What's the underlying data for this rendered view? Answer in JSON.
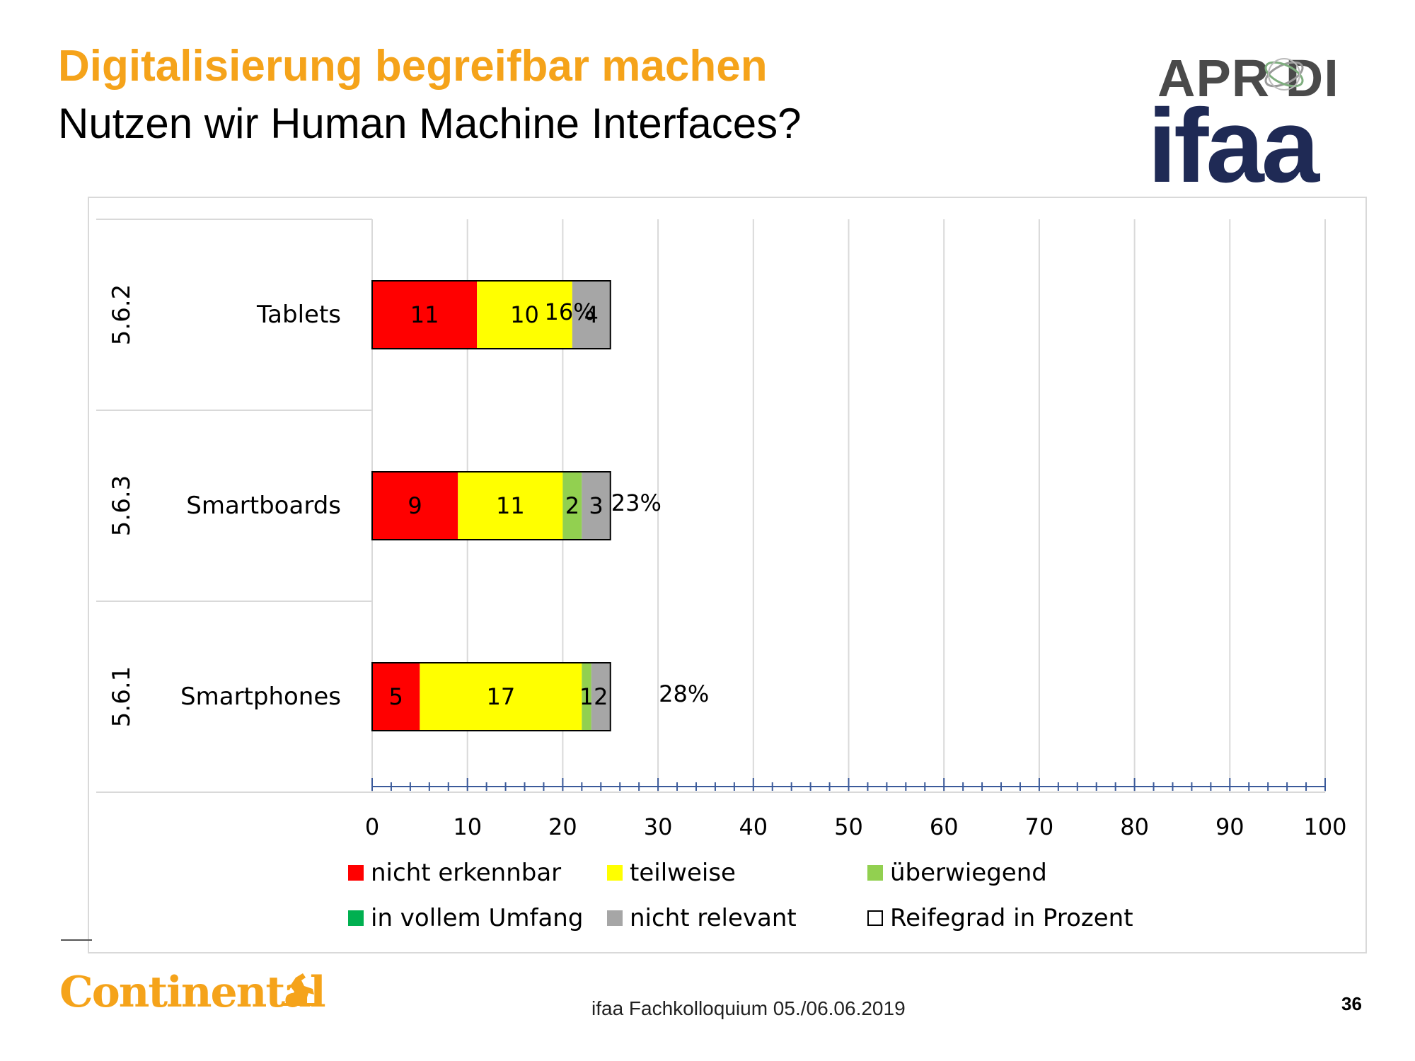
{
  "header": {
    "title": "Digitalisierung begreifbar machen",
    "subtitle": "Nutzen wir Human Machine Interfaces?"
  },
  "logos": {
    "aprodi": "APR  DI",
    "ifaa": "ifaa",
    "continental": "Continental",
    "continental_icon": "horse-icon"
  },
  "footer": {
    "text": "ifaa Fachkolloquium 05./06.06.2019",
    "page_number": "36"
  },
  "colors": {
    "title": "#F5A31A",
    "nicht_erkennbar": "#FF0000",
    "teilweise": "#FFFF00",
    "ueberwiegend": "#92D050",
    "in_vollem_umfang": "#00B050",
    "nicht_relevant": "#A6A6A6",
    "reifegrad": "#FFFFFF",
    "gridline": "#d9d9d9"
  },
  "chart_data": {
    "type": "bar",
    "orientation": "horizontal",
    "stacked": true,
    "categories": [
      {
        "code": "5.6.2",
        "label": "Tablets"
      },
      {
        "code": "5.6.3",
        "label": "Smartboards"
      },
      {
        "code": "5.6.1",
        "label": "Smartphones"
      }
    ],
    "series": [
      {
        "name": "nicht erkennbar",
        "values": [
          11,
          9,
          5
        ],
        "labels": [
          "11",
          "9",
          "5"
        ]
      },
      {
        "name": "teilweise",
        "values": [
          10,
          11,
          17
        ],
        "labels": [
          "10",
          "11",
          "17"
        ]
      },
      {
        "name": "überwiegend",
        "values": [
          0,
          2,
          1
        ],
        "labels": [
          "",
          "2",
          "1"
        ]
      },
      {
        "name": "in vollem Umfang",
        "values": [
          0,
          0,
          0
        ],
        "labels": [
          "",
          "",
          ""
        ]
      },
      {
        "name": "nicht relevant",
        "values": [
          4,
          3,
          2
        ],
        "labels": [
          "4",
          "3",
          "2"
        ]
      }
    ],
    "reifegrad": {
      "name": "Reifegrad in Prozent",
      "values": [
        16,
        23,
        28
      ],
      "labels": [
        "16%",
        "23%",
        "28%"
      ]
    },
    "xlim": [
      0,
      100
    ],
    "xticks": [
      "0",
      "10",
      "20",
      "30",
      "40",
      "50",
      "60",
      "70",
      "80",
      "90",
      "100"
    ],
    "grid": true,
    "legend_position": "bottom",
    "legend": [
      "nicht erkennbar",
      "teilweise",
      "überwiegend",
      "in vollem Umfang",
      "nicht relevant",
      "Reifegrad in Prozent"
    ]
  }
}
